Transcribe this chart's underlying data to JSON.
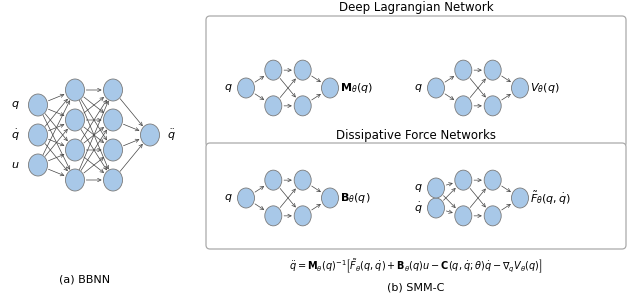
{
  "node_color": "#a8c8e8",
  "node_edge_color": "#7a7a7a",
  "arrow_color": "#444444",
  "bg_color": "#ffffff",
  "title_fontsize": 8.5,
  "label_fontsize": 8,
  "eq_fontsize": 7,
  "caption_fontsize": 8,
  "deep_lagrangian_title": "Deep Lagrangian Network",
  "dissipative_title": "Dissipative Force Networks",
  "caption_a": "(a) BBNN",
  "caption_b": "(b) SMM-C",
  "equation": "$\\ddot{q} = \\mathbf{M}_{\\theta}(q)^{-1}\\left[\\tilde{F}_{\\theta}(q,\\dot{q}) + \\mathbf{B}_{\\theta}(q)u - \\mathbf{C}(q,\\dot{q};\\theta)\\dot{q} - \\nabla_q V_{\\theta}(q)\\right]$"
}
